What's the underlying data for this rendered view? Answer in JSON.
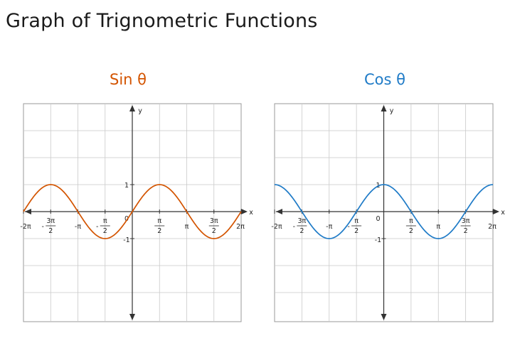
{
  "page": {
    "title": "Graph of Trignometric Functions"
  },
  "chart_data": [
    {
      "type": "line",
      "title": "Sin θ",
      "function": "sin",
      "color": "#d35400",
      "xlabel": "x",
      "ylabel": "y",
      "xlim": [
        -6.2832,
        6.2832
      ],
      "ylim": [
        -3.7,
        3.7
      ],
      "grid": true,
      "x": [
        -6.2832,
        -5.4978,
        -4.7124,
        -3.927,
        -3.1416,
        -2.3562,
        -1.5708,
        -0.7854,
        0,
        0.7854,
        1.5708,
        2.3562,
        3.1416,
        3.927,
        4.7124,
        5.4978,
        6.2832
      ],
      "y": [
        0,
        0.7071,
        1,
        0.7071,
        0,
        -0.7071,
        -1,
        -0.7071,
        0,
        0.7071,
        1,
        0.7071,
        0,
        -0.7071,
        -1,
        -0.7071,
        0
      ],
      "x_ticks": [
        {
          "value": -6.2832,
          "label": "-2π"
        },
        {
          "value": -4.7124,
          "num": "3π",
          "den": "2",
          "sign": "-"
        },
        {
          "value": -3.1416,
          "label": "-π"
        },
        {
          "value": -1.5708,
          "num": "π",
          "den": "2",
          "sign": "-"
        },
        {
          "value": 1.5708,
          "num": "π",
          "den": "2"
        },
        {
          "value": 3.1416,
          "label": "π"
        },
        {
          "value": 4.7124,
          "num": "3π",
          "den": "2"
        },
        {
          "value": 6.2832,
          "label": "2π"
        }
      ],
      "y_ticks": [
        {
          "value": 1,
          "label": "1"
        },
        {
          "value": -1,
          "label": "-1"
        }
      ],
      "origin_label": "0"
    },
    {
      "type": "line",
      "title": "Cos θ",
      "function": "cos",
      "color": "#1f7bc7",
      "xlabel": "x",
      "ylabel": "y",
      "xlim": [
        -6.2832,
        6.2832
      ],
      "ylim": [
        -3.7,
        3.7
      ],
      "grid": true,
      "x": [
        -6.2832,
        -5.4978,
        -4.7124,
        -3.927,
        -3.1416,
        -2.3562,
        -1.5708,
        -0.7854,
        0,
        0.7854,
        1.5708,
        2.3562,
        3.1416,
        3.927,
        4.7124,
        5.4978,
        6.2832
      ],
      "y": [
        1,
        0.7071,
        0,
        -0.7071,
        -1,
        -0.7071,
        0,
        0.7071,
        1,
        0.7071,
        0,
        -0.7071,
        -1,
        -0.7071,
        0,
        0.7071,
        1
      ],
      "x_ticks": [
        {
          "value": -6.2832,
          "label": "-2π"
        },
        {
          "value": -4.7124,
          "num": "3π",
          "den": "2",
          "sign": "-"
        },
        {
          "value": -3.1416,
          "label": "-π"
        },
        {
          "value": -1.5708,
          "num": "π",
          "den": "2",
          "sign": "-"
        },
        {
          "value": 1.5708,
          "num": "π",
          "den": "2"
        },
        {
          "value": 3.1416,
          "label": "π"
        },
        {
          "value": 4.7124,
          "num": "3π",
          "den": "2"
        },
        {
          "value": 6.2832,
          "label": "2π"
        }
      ],
      "y_ticks": [
        {
          "value": 1,
          "label": "1"
        },
        {
          "value": -1,
          "label": "-1"
        }
      ],
      "origin_label": "0"
    }
  ]
}
